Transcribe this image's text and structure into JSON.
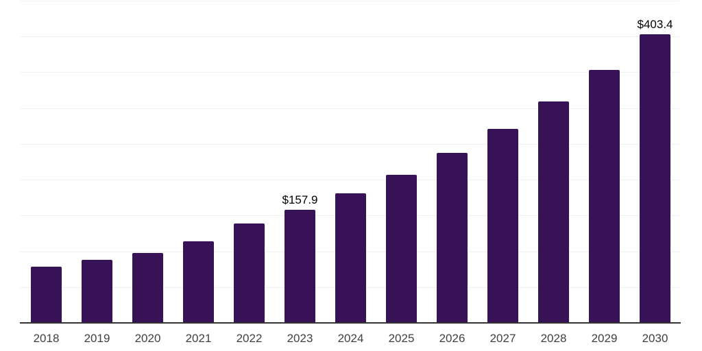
{
  "chart_data": {
    "type": "bar",
    "title": "",
    "xlabel": "",
    "ylabel": "",
    "categories": [
      "2018",
      "2019",
      "2020",
      "2021",
      "2022",
      "2023",
      "2024",
      "2025",
      "2026",
      "2027",
      "2028",
      "2029",
      "2030"
    ],
    "values": [
      78.5,
      88.0,
      97.6,
      114.2,
      138.8,
      157.9,
      180.6,
      206.7,
      237.3,
      270.8,
      309.1,
      353.1,
      403.4
    ],
    "annotations": [
      {
        "category": "2023",
        "label": "$157.9"
      },
      {
        "category": "2030",
        "label": "$403.4"
      }
    ],
    "ylim": [
      0,
      450
    ],
    "grid": true,
    "gridline_interval": 50,
    "y_axis_labels_shown": false,
    "legend_position": "none",
    "colors": {
      "bar": "#371256",
      "gridline": "#f0f0f1",
      "axis_line": "#333333",
      "tick_label": "#404040",
      "annotation": "#000000",
      "background": "#ffffff"
    }
  }
}
